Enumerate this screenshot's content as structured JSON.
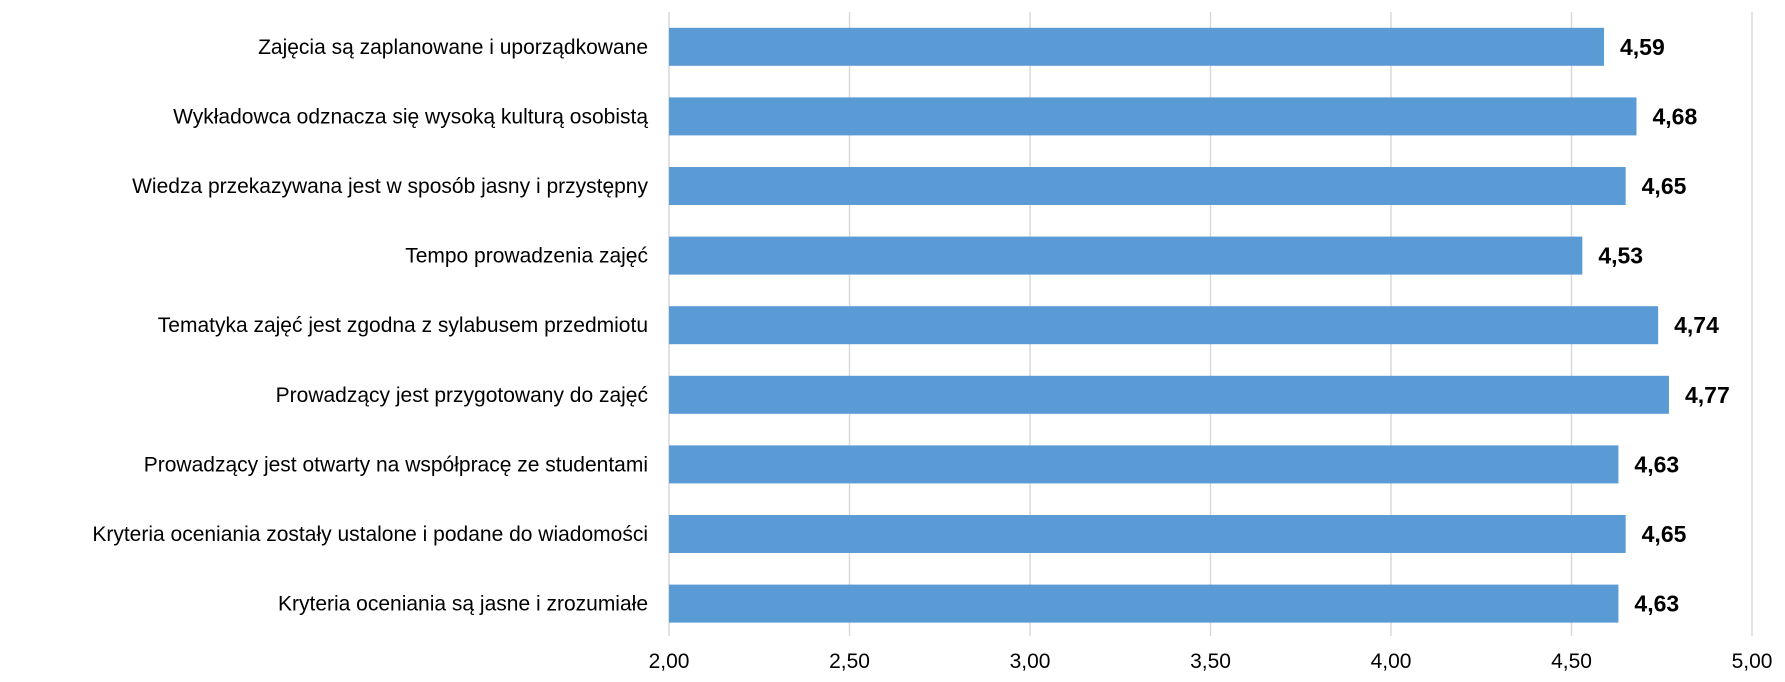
{
  "chart_data": {
    "type": "bar",
    "orientation": "horizontal",
    "title": "",
    "xlabel": "",
    "ylabel": "",
    "xlim": [
      2.0,
      5.0
    ],
    "grid": true,
    "legend": "none",
    "bar_color": "#5b9bd5",
    "ticks": [
      "2,00",
      "2,50",
      "3,00",
      "3,50",
      "4,00",
      "4,50",
      "5,00"
    ],
    "tick_values": [
      2.0,
      2.5,
      3.0,
      3.5,
      4.0,
      4.5,
      5.0
    ],
    "categories": [
      "Zajęcia są zaplanowane i uporządkowane",
      "Wykładowca odznacza się wysoką kulturą osobistą",
      "Wiedza przekazywana jest w sposób jasny i przystępny",
      "Tempo prowadzenia zajęć",
      "Tematyka zajęć jest zgodna z sylabusem przedmiotu",
      "Prowadzący jest przygotowany do zajęć",
      "Prowadzący jest otwarty na współpracę ze studentami",
      "Kryteria oceniania zostały ustalone i podane do wiadomości",
      "Kryteria oceniania są jasne i zrozumiałe"
    ],
    "values": [
      4.59,
      4.68,
      4.65,
      4.53,
      4.74,
      4.77,
      4.63,
      4.65,
      4.63
    ],
    "value_labels": [
      "4,59",
      "4,68",
      "4,65",
      "4,53",
      "4,74",
      "4,77",
      "4,63",
      "4,65",
      "4,63"
    ]
  }
}
